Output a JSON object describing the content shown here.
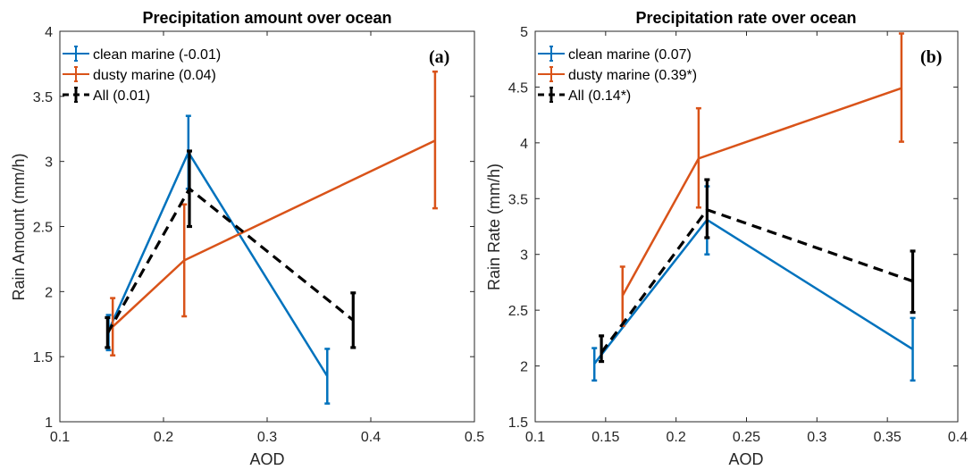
{
  "chart_data": [
    {
      "type": "line",
      "title": "Precipitation amount over ocean",
      "panel_label": "(a)",
      "xlabel": "AOD",
      "ylabel": "Rain Amount (mm/h)",
      "xlim": [
        0.1,
        0.5
      ],
      "ylim": [
        1,
        4
      ],
      "xticks": [
        "0.1",
        "0.2",
        "0.3",
        "0.4",
        "0.5"
      ],
      "yticks": [
        "1",
        "1.5",
        "2",
        "2.5",
        "3",
        "3.5",
        "4"
      ],
      "grid": false,
      "legend_position": "top-left",
      "series": [
        {
          "name": "clean marine (-0.01)",
          "color": "#0072BD",
          "dashed": false,
          "x": [
            0.147,
            0.224,
            0.358
          ],
          "y": [
            1.7,
            3.07,
            1.35
          ],
          "lower": [
            1.55,
            2.79,
            1.14
          ],
          "upper": [
            1.82,
            3.35,
            1.56
          ]
        },
        {
          "name": "dusty marine (0.04)",
          "color": "#D95319",
          "dashed": false,
          "x": [
            0.151,
            0.22,
            0.462
          ],
          "y": [
            1.73,
            2.24,
            3.16
          ],
          "lower": [
            1.51,
            1.81,
            2.64
          ],
          "upper": [
            1.95,
            2.67,
            3.69
          ]
        },
        {
          "name": "All (0.01)",
          "color": "#000000",
          "dashed": true,
          "x": [
            0.146,
            0.225,
            0.383
          ],
          "y": [
            1.68,
            2.79,
            1.78
          ],
          "lower": [
            1.57,
            2.5,
            1.57
          ],
          "upper": [
            1.8,
            3.08,
            1.99
          ]
        }
      ]
    },
    {
      "type": "line",
      "title": "Precipitation rate over ocean",
      "panel_label": "(b)",
      "xlabel": "AOD",
      "ylabel": "Rain Rate (mm/h)",
      "xlim": [
        0.1,
        0.4
      ],
      "ylim": [
        1.5,
        5
      ],
      "xticks": [
        "0.1",
        "0.15",
        "0.2",
        "0.25",
        "0.3",
        "0.35",
        "0.4"
      ],
      "yticks": [
        "1.5",
        "2",
        "2.5",
        "3",
        "3.5",
        "4",
        "4.5",
        "5"
      ],
      "grid": false,
      "legend_position": "top-left",
      "series": [
        {
          "name": "clean marine (0.07)",
          "color": "#0072BD",
          "dashed": false,
          "x": [
            0.142,
            0.222,
            0.368
          ],
          "y": [
            2.02,
            3.31,
            2.15
          ],
          "lower": [
            1.87,
            3.0,
            1.87
          ],
          "upper": [
            2.16,
            3.61,
            2.43
          ]
        },
        {
          "name": "dusty marine (0.39*)",
          "color": "#D95319",
          "dashed": false,
          "x": [
            0.162,
            0.216,
            0.36
          ],
          "y": [
            2.63,
            3.86,
            4.49
          ],
          "lower": [
            2.36,
            3.42,
            4.01
          ],
          "upper": [
            2.89,
            4.31,
            4.98
          ]
        },
        {
          "name": "All (0.14*)",
          "color": "#000000",
          "dashed": true,
          "x": [
            0.147,
            0.222,
            0.368
          ],
          "y": [
            2.12,
            3.4,
            2.76
          ],
          "lower": [
            2.04,
            3.15,
            2.48
          ],
          "upper": [
            2.27,
            3.67,
            3.03
          ]
        }
      ]
    }
  ]
}
